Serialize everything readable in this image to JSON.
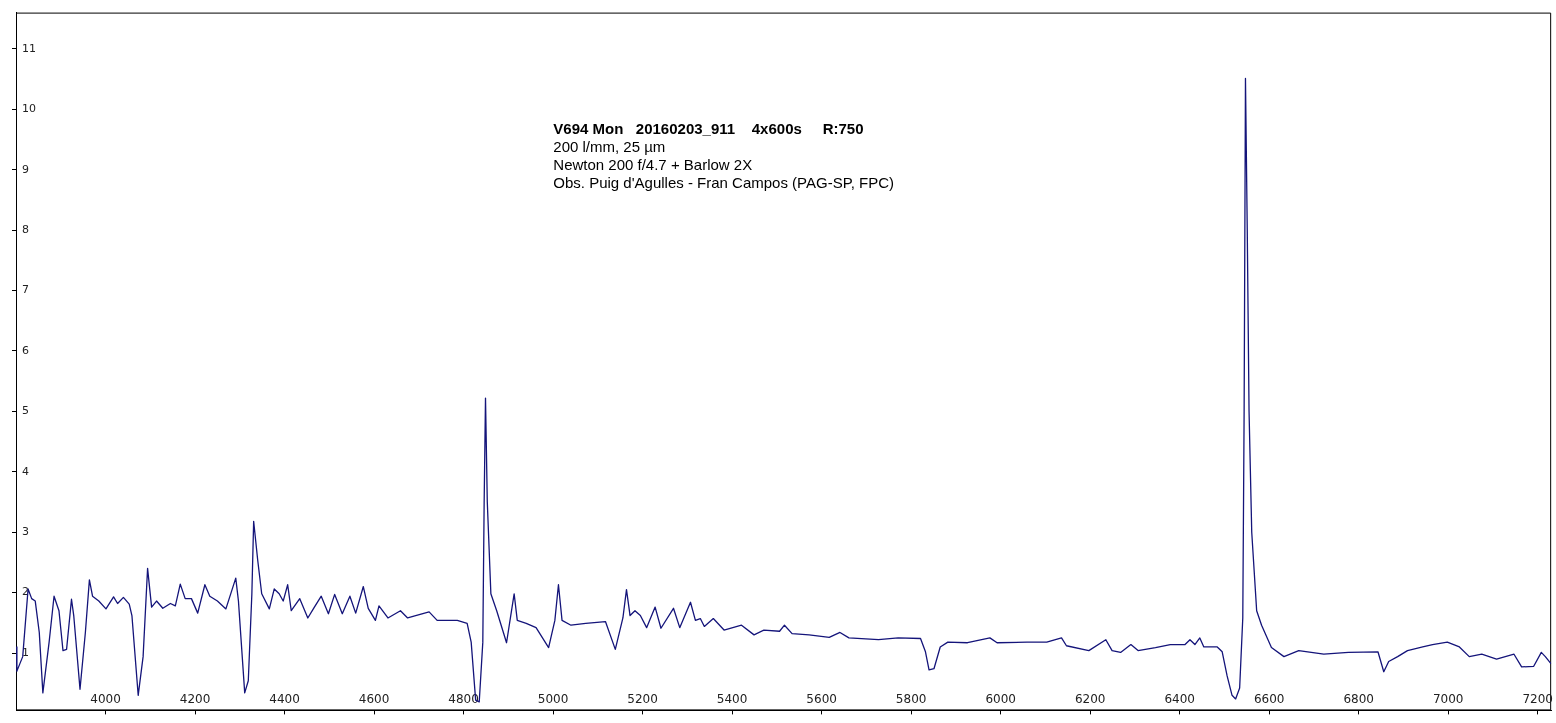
{
  "chart_data": {
    "type": "line",
    "title": "V694 Mon   20160203_911    4x600s     R:750",
    "annotations": [
      "200 l/mm, 25 µm",
      "Newton 200 f/4.7 + Barlow 2X",
      "Obs. Puig d'Agulles - Fran Campos (PAG-SP, FPC)"
    ],
    "x": [
      3800,
      3802,
      3815,
      3827,
      3835,
      3843,
      3852,
      3860,
      3874,
      3885,
      3896,
      3905,
      3913,
      3924,
      3929,
      3943,
      3955,
      3964,
      3971,
      3985,
      4001,
      4018,
      4027,
      4040,
      4053,
      4059,
      4073,
      4084,
      4094,
      4103,
      4114,
      4128,
      4145,
      4156,
      4167,
      4178,
      4192,
      4206,
      4222,
      4233,
      4250,
      4269,
      4291,
      4297,
      4311,
      4319,
      4327,
      4331,
      4340,
      4349,
      4366,
      4377,
      4388,
      4397,
      4407,
      4415,
      4434,
      4452,
      4465,
      4482,
      4498,
      4512,
      4529,
      4546,
      4559,
      4576,
      4587,
      4603,
      4611,
      4631,
      4659,
      4675,
      4723,
      4741,
      4786,
      4808,
      4817,
      4827,
      4835,
      4843,
      4846,
      4849,
      4853,
      4861,
      4874,
      4896,
      4913,
      4920,
      4940,
      4962,
      4990,
      5004,
      5012,
      5020,
      5040,
      5073,
      5117,
      5139,
      5156,
      5164,
      5172,
      5183,
      5195,
      5209,
      5228,
      5241,
      5269,
      5283,
      5307,
      5318,
      5329,
      5338,
      5358,
      5382,
      5421,
      5449,
      5471,
      5506,
      5517,
      5534,
      5572,
      5617,
      5641,
      5661,
      5727,
      5771,
      5821,
      5832,
      5840,
      5851,
      5865,
      5882,
      5926,
      5976,
      5992,
      6059,
      6103,
      6136,
      6147,
      6197,
      6235,
      6249,
      6268,
      6291,
      6307,
      6346,
      6379,
      6412,
      6423,
      6434,
      6445,
      6454,
      6484,
      6495,
      6506,
      6517,
      6525,
      6534,
      6541,
      6544,
      6547,
      6551,
      6555,
      6561,
      6572,
      6583,
      6605,
      6633,
      6666,
      6722,
      6777,
      6843,
      6856,
      6867,
      6887,
      6909,
      6943,
      6965,
      6998,
      7025,
      7047,
      7075,
      7108,
      7147,
      7164,
      7191,
      7208,
      7217,
      7230
    ],
    "values": [
      1.1,
      0.7,
      0.94,
      2.06,
      1.9,
      1.86,
      1.34,
      0.34,
      1.18,
      1.94,
      1.7,
      1.04,
      1.06,
      1.89,
      1.62,
      0.4,
      1.34,
      2.21,
      1.94,
      1.86,
      1.73,
      1.93,
      1.82,
      1.92,
      1.81,
      1.62,
      0.3,
      0.94,
      2.4,
      1.76,
      1.86,
      1.74,
      1.82,
      1.78,
      2.14,
      1.9,
      1.9,
      1.66,
      2.13,
      1.94,
      1.86,
      1.73,
      2.24,
      1.86,
      0.34,
      0.54,
      1.98,
      3.18,
      2.54,
      1.98,
      1.73,
      2.06,
      1.98,
      1.86,
      2.13,
      1.7,
      1.9,
      1.58,
      1.74,
      1.94,
      1.65,
      1.97,
      1.65,
      1.94,
      1.66,
      2.1,
      1.74,
      1.54,
      1.78,
      1.58,
      1.7,
      1.58,
      1.68,
      1.54,
      1.54,
      1.49,
      1.18,
      0.22,
      0.19,
      1.18,
      3.5,
      5.22,
      3.5,
      1.98,
      1.7,
      1.17,
      1.98,
      1.54,
      1.49,
      1.42,
      1.09,
      1.54,
      2.13,
      1.54,
      1.46,
      1.49,
      1.52,
      1.06,
      1.58,
      2.05,
      1.62,
      1.7,
      1.62,
      1.42,
      1.76,
      1.41,
      1.74,
      1.42,
      1.84,
      1.54,
      1.57,
      1.44,
      1.57,
      1.38,
      1.46,
      1.3,
      1.38,
      1.36,
      1.46,
      1.32,
      1.3,
      1.26,
      1.34,
      1.25,
      1.22,
      1.25,
      1.24,
      1.02,
      0.72,
      0.74,
      1.1,
      1.18,
      1.17,
      1.25,
      1.17,
      1.18,
      1.18,
      1.25,
      1.12,
      1.04,
      1.22,
      1.04,
      1.01,
      1.14,
      1.04,
      1.09,
      1.14,
      1.14,
      1.22,
      1.14,
      1.25,
      1.1,
      1.1,
      1.02,
      0.62,
      0.3,
      0.24,
      0.42,
      1.58,
      5.0,
      10.51,
      8.0,
      5.0,
      3.0,
      1.7,
      1.46,
      1.09,
      0.94,
      1.04,
      0.98,
      1.01,
      1.02,
      0.69,
      0.86,
      0.94,
      1.04,
      1.1,
      1.14,
      1.18,
      1.1,
      0.94,
      0.98,
      0.9,
      0.98,
      0.77,
      0.78,
      1.01,
      0.94,
      0.82
    ],
    "color": "#14147a",
    "marker": "none",
    "xlim": [
      3800,
      7230
    ],
    "xticks": [
      4000,
      4200,
      4400,
      4600,
      4800,
      5000,
      5200,
      5400,
      5600,
      5800,
      6000,
      6200,
      6400,
      6600,
      6800,
      7000,
      7200
    ],
    "ylim": [
      0.05,
      11.6
    ],
    "yticks": [
      1,
      2,
      3,
      4,
      5,
      6,
      7,
      8,
      9,
      10,
      11
    ]
  }
}
